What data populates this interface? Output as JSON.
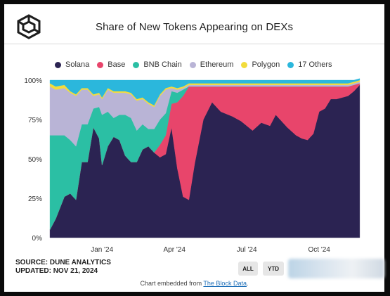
{
  "header": {
    "title": "Share of New Tokens Appearing on DEXs",
    "logo_icon": "cube-logo-icon"
  },
  "footer": {
    "source": "SOURCE: DUNE ANALYTICS",
    "updated": "UPDATED: NOV 21, 2024",
    "btn_all": "ALL",
    "btn_ytd": "YTD",
    "embed_prefix": "Chart embedded from ",
    "embed_link": "The Block Data",
    "embed_suffix": "."
  },
  "chart_data": {
    "type": "area",
    "stacked": true,
    "title": "Share of New Tokens Appearing on DEXs",
    "xlabel": "",
    "ylabel": "",
    "ylim": [
      0,
      100
    ],
    "y_ticks": [
      "0%",
      "25%",
      "50%",
      "75%",
      "100%"
    ],
    "x_tick_labels": [
      "Jan '24",
      "Apr '24",
      "Jul '24",
      "Oct '24"
    ],
    "x_tick_positions": [
      2024.0,
      2024.25,
      2024.5,
      2024.75
    ],
    "xlim": [
      2023.815,
      2024.9
    ],
    "legend_position": "top",
    "x": [
      2023.82,
      2023.84,
      2023.87,
      2023.89,
      2023.91,
      2023.93,
      2023.95,
      2023.97,
      2023.99,
      2024.0,
      2024.02,
      2024.04,
      2024.06,
      2024.08,
      2024.1,
      2024.12,
      2024.14,
      2024.16,
      2024.18,
      2024.2,
      2024.22,
      2024.24,
      2024.26,
      2024.28,
      2024.3,
      2024.32,
      2024.35,
      2024.38,
      2024.41,
      2024.45,
      2024.48,
      2024.52,
      2024.55,
      2024.58,
      2024.6,
      2024.62,
      2024.64,
      2024.67,
      2024.69,
      2024.71,
      2024.73,
      2024.75,
      2024.77,
      2024.79,
      2024.81,
      2024.83,
      2024.85,
      2024.87,
      2024.89
    ],
    "series": [
      {
        "name": "Solana",
        "color": "#2b2352",
        "values": [
          5,
          12,
          26,
          28,
          24,
          48,
          48,
          70,
          63,
          46,
          58,
          64,
          62,
          52,
          48,
          48,
          56,
          58,
          54,
          51,
          53,
          70,
          44,
          26,
          24,
          47,
          75,
          86,
          80,
          77,
          74,
          68,
          73,
          71,
          78,
          74,
          70,
          65,
          63,
          62,
          66,
          80,
          82,
          88,
          88,
          89,
          90,
          93,
          97
        ]
      },
      {
        "name": "Base",
        "color": "#e8456b",
        "values": [
          0,
          0,
          0,
          0,
          0,
          0,
          0,
          0,
          0,
          0,
          0,
          0,
          0,
          0,
          0,
          0,
          0,
          0,
          0,
          8,
          12,
          15,
          42,
          64,
          72,
          49,
          21,
          10,
          16,
          19,
          22,
          28,
          23,
          25,
          18,
          22,
          26,
          31,
          33,
          34,
          30,
          16,
          14,
          8,
          8,
          7,
          6,
          4,
          1
        ]
      },
      {
        "name": "BNB Chain",
        "color": "#2bbfa4",
        "values": [
          60,
          53,
          39,
          34,
          34,
          24,
          24,
          12,
          20,
          32,
          22,
          12,
          16,
          26,
          28,
          20,
          16,
          11,
          15,
          16,
          14,
          8,
          6,
          4,
          0,
          0,
          0,
          0,
          0,
          0,
          0,
          0,
          0,
          0,
          0,
          0,
          0,
          0,
          0,
          0,
          0,
          0,
          0,
          0,
          0,
          0,
          0,
          0,
          0
        ]
      },
      {
        "name": "Ethereum",
        "color": "#b9b4d6",
        "values": [
          31,
          29,
          30,
          30,
          32,
          22,
          22,
          8,
          8,
          10,
          14,
          16,
          14,
          14,
          15,
          19,
          16,
          16,
          14,
          15,
          15,
          2,
          2,
          1,
          1,
          1,
          1,
          1,
          1,
          1,
          1,
          1,
          1,
          1,
          1,
          1,
          1,
          1,
          1,
          1,
          1,
          1,
          1,
          1,
          1,
          1,
          1,
          1,
          1
        ]
      },
      {
        "name": "Polygon",
        "color": "#f2dc3c",
        "values": [
          2,
          2,
          2,
          1,
          1,
          1,
          1,
          1,
          1,
          1,
          1,
          1,
          1,
          1,
          1,
          1,
          1,
          1,
          1,
          1,
          1,
          1,
          1,
          1,
          1,
          1,
          1,
          1,
          1,
          1,
          1,
          1,
          1,
          1,
          1,
          1,
          1,
          1,
          1,
          1,
          1,
          1,
          1,
          1,
          1,
          1,
          1,
          1,
          1
        ]
      },
      {
        "name": "17 Others",
        "color": "#2bb7dc",
        "values": [
          2,
          4,
          3,
          7,
          9,
          5,
          5,
          9,
          8,
          11,
          5,
          7,
          7,
          7,
          8,
          12,
          11,
          14,
          16,
          9,
          5,
          4,
          5,
          4,
          2,
          2,
          2,
          2,
          2,
          2,
          2,
          2,
          2,
          2,
          2,
          2,
          2,
          2,
          2,
          2,
          2,
          2,
          2,
          2,
          2,
          2,
          2,
          1,
          1
        ]
      }
    ]
  }
}
